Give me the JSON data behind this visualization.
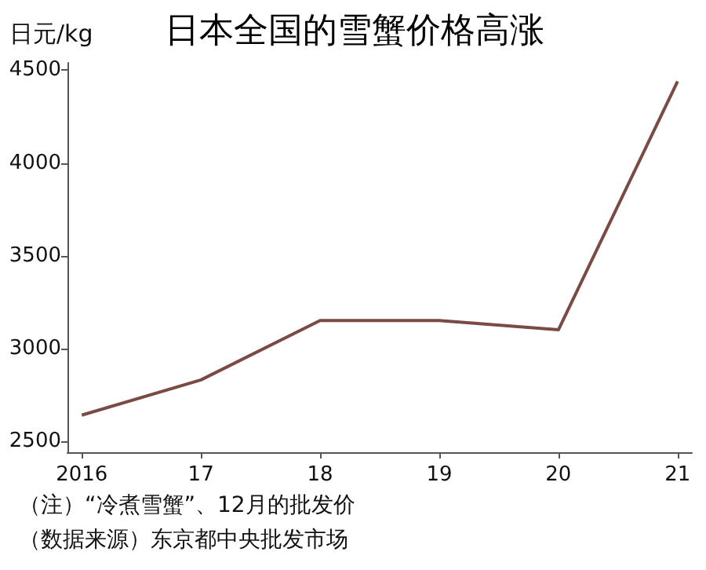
{
  "chart_data": {
    "type": "line",
    "title": "日本全国的雪蟹价格高涨",
    "ylabel": "日元/kg",
    "x": [
      2016,
      2017,
      2018,
      2019,
      2020,
      2021
    ],
    "series": [
      {
        "color": "#7a4a45",
        "values": [
          2640,
          2830,
          3150,
          3150,
          3100,
          4440
        ]
      }
    ],
    "xlim": [
      2015.88,
      2021.12
    ],
    "xticks": [
      {
        "value": 2016,
        "label": "2016"
      },
      {
        "value": 2017,
        "label": "17"
      },
      {
        "value": 2018,
        "label": "18"
      },
      {
        "value": 2019,
        "label": "19"
      },
      {
        "value": 2020,
        "label": "20"
      },
      {
        "value": 2021,
        "label": "21"
      }
    ],
    "ylim": [
      2440,
      4540
    ],
    "yticks": [
      2500,
      3000,
      3500,
      4000,
      4500
    ],
    "grid": false,
    "marker": "none",
    "line_style": "solid",
    "annotations": [
      "（注）“冷煮雪蟹”、12月的批发价",
      "（数据来源）东京都中央批发市场"
    ]
  }
}
